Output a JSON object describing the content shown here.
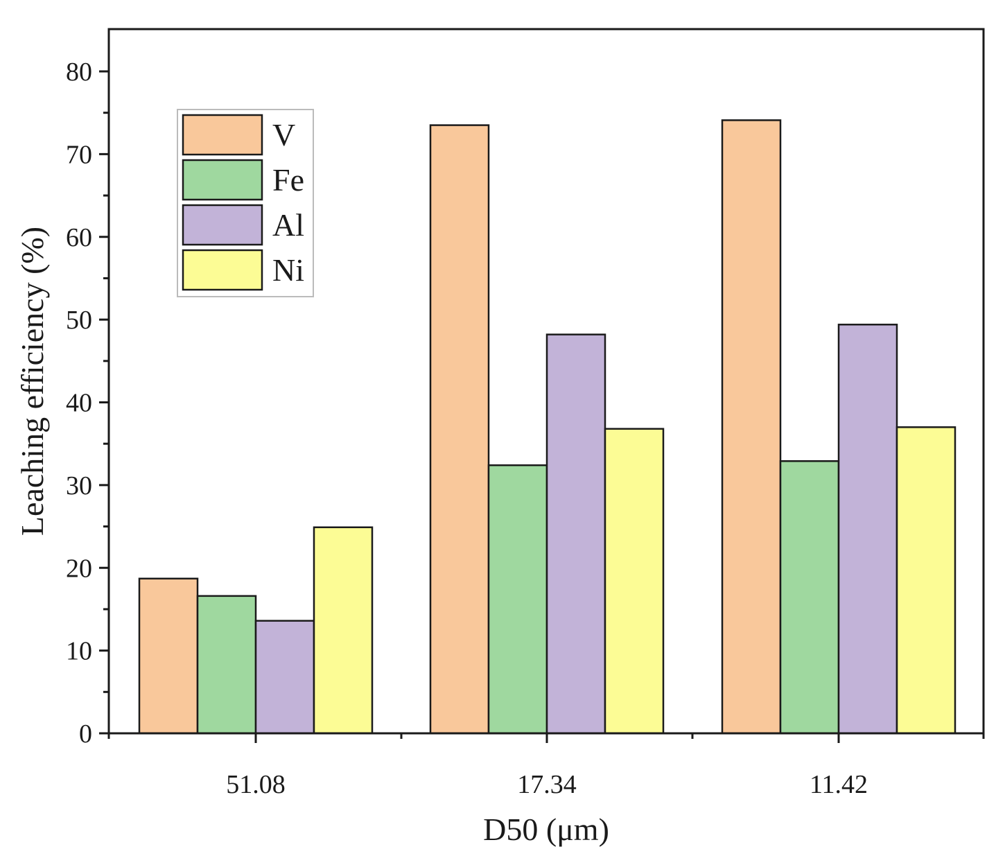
{
  "chart_data": {
    "type": "bar",
    "title": "",
    "xlabel": "D50 (μm)",
    "ylabel": "Leaching efficiency (%)",
    "categories": [
      "51.08",
      "17.34",
      "11.42"
    ],
    "series": [
      {
        "name": "V",
        "color": "#f9c89b",
        "values": [
          18.7,
          73.5,
          74.1
        ]
      },
      {
        "name": "Fe",
        "color": "#9fd89f",
        "values": [
          16.6,
          32.4,
          32.9
        ]
      },
      {
        "name": "Al",
        "color": "#c2b3d8",
        "values": [
          13.6,
          48.2,
          49.4
        ]
      },
      {
        "name": "Ni",
        "color": "#fcfc95",
        "values": [
          24.9,
          36.8,
          37.0
        ]
      }
    ],
    "ylim": [
      0,
      85
    ],
    "yticks": [
      0,
      10,
      20,
      30,
      40,
      50,
      60,
      70,
      80
    ],
    "ytick_labels": [
      "0",
      "10",
      "20",
      "30",
      "40",
      "50",
      "60",
      "70",
      "80"
    ],
    "legend_position": "top-left",
    "grid": false
  }
}
